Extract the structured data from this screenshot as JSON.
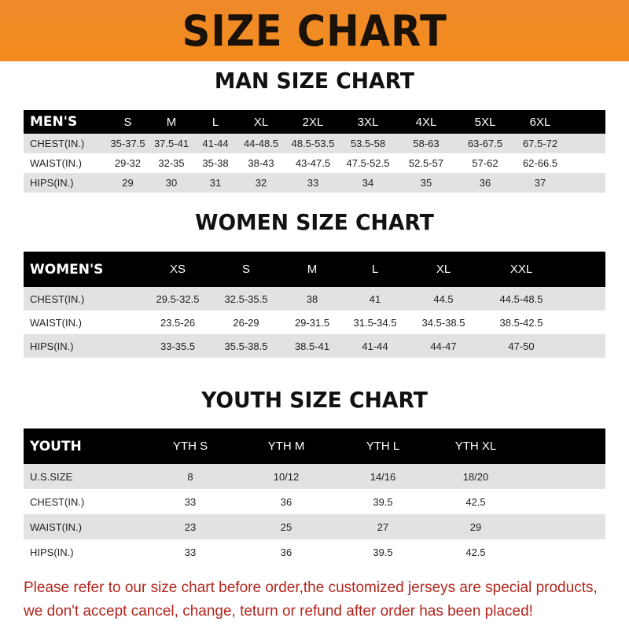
{
  "banner_title": "SIZE CHART",
  "men": {
    "title": "MAN SIZE CHART",
    "header_label": "MEN'S",
    "sizes": [
      "S",
      "M",
      "L",
      "XL",
      "2XL",
      "3XL",
      "4XL",
      "5XL",
      "6XL"
    ],
    "rows": [
      {
        "label": "CHEST(IN.)",
        "values": [
          "35-37.5",
          "37.5-41",
          "41-44",
          "44-48.5",
          "48.5-53.5",
          "53.5-58",
          "58-63",
          "63-67.5",
          "67.5-72"
        ]
      },
      {
        "label": "WAIST(IN.)",
        "values": [
          "29-32",
          "32-35",
          "35-38",
          "38-43",
          "43-47.5",
          "47.5-52.5",
          "52.5-57",
          "57-62",
          "62-66.5"
        ]
      },
      {
        "label": "HIPS(IN.)",
        "values": [
          "29",
          "30",
          "31",
          "32",
          "33",
          "34",
          "35",
          "36",
          "37"
        ]
      }
    ]
  },
  "women": {
    "title": "WOMEN SIZE CHART",
    "header_label": "WOMEN'S",
    "sizes": [
      "XS",
      "S",
      "M",
      "L",
      "XL",
      "XXL"
    ],
    "rows": [
      {
        "label": "CHEST(IN.)",
        "values": [
          "29.5-32.5",
          "32.5-35.5",
          "38",
          "41",
          "44.5",
          "44.5-48.5"
        ]
      },
      {
        "label": "WAIST(IN.)",
        "values": [
          "23.5-26",
          "26-29",
          "29-31.5",
          "31.5-34.5",
          "34.5-38.5",
          "38.5-42.5"
        ]
      },
      {
        "label": "HIPS(IN.)",
        "values": [
          "33-35.5",
          "35.5-38.5",
          "38.5-41",
          "41-44",
          "44-47",
          "47-50"
        ]
      }
    ]
  },
  "youth": {
    "title": "YOUTH SIZE CHART",
    "header_label": "YOUTH",
    "sizes": [
      "YTH S",
      "YTH M",
      "YTH L",
      "YTH XL"
    ],
    "rows": [
      {
        "label": "U.S.SIZE",
        "values": [
          "8",
          "10/12",
          "14/16",
          "18/20"
        ]
      },
      {
        "label": "CHEST(IN.)",
        "values": [
          "33",
          "36",
          "39.5",
          "42.5"
        ]
      },
      {
        "label": "WAIST(IN.)",
        "values": [
          "23",
          "25",
          "27",
          "29"
        ]
      },
      {
        "label": "HIPS(IN.)",
        "values": [
          "33",
          "36",
          "39.5",
          "42.5"
        ]
      }
    ]
  },
  "notice": [
    "Please refer to our size chart before order,the customized jerseys are special products,",
    "we don't accept cancel, change, teturn or refund after order has been placed!"
  ]
}
